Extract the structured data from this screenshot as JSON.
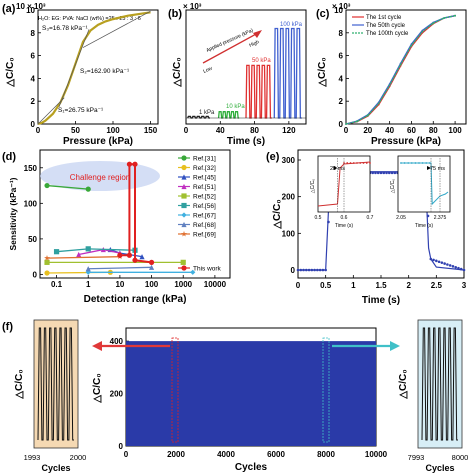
{
  "panels": {
    "a": {
      "letter": "(a)",
      "exp_label": "10 × 10³",
      "formula": "H₂O: EG: PVA: NaCl (wt%) =25 : 25 : 3 : 6",
      "ylabel": "△C/C₀",
      "xlabel": "Pressure (kPa)",
      "xticks": [
        "0",
        "50",
        "100",
        "150"
      ],
      "yticks": [
        "0",
        "2",
        "4",
        "6",
        "8",
        "10"
      ],
      "s3": "S₃=16.78 kPa⁻¹",
      "s2": "S₂=162.90 kPa⁻¹",
      "s1": "S₁=26.75 kPa⁻¹"
    },
    "b": {
      "letter": "(b)",
      "exp_label": "× 10³",
      "ylabel": "△C/C₀",
      "xlabel": "Time (s)",
      "xticks": [
        "0",
        "40",
        "80",
        "120"
      ],
      "arrow_label": "Applied pressure (kPa)",
      "low": "Low",
      "high": "High",
      "l1": "1 kPa",
      "l10": "10 kPa",
      "l50": "50 kPa",
      "l100": "100 kPa"
    },
    "c": {
      "letter": "(c)",
      "exp_label": "× 10³",
      "ylabel": "△C/C₀",
      "xlabel": "Pressure (kPa)",
      "xticks": [
        "0",
        "20",
        "40",
        "60",
        "80",
        "100"
      ],
      "yticks": [
        "0",
        "2",
        "4",
        "6",
        "8",
        "10"
      ],
      "legend": [
        "The 1st cycle",
        "The 50th cycle",
        "The 100th cycle"
      ]
    },
    "d": {
      "letter": "(d)",
      "ylabel": "Sensitivity (kPa⁻¹)",
      "xlabel": "Detection range (kPa)",
      "xticks": [
        "0.1",
        "1",
        "10",
        "100",
        "1000",
        "10000"
      ],
      "yticks": [
        "0",
        "50",
        "100",
        "150"
      ],
      "challenge": "Challenge region",
      "refs": [
        "Ref.[31]",
        "Ref.[32]",
        "Ref.[45]",
        "Ref.[51]",
        "Ref.[52]",
        "Ref.[56]",
        "Ref.[67]",
        "Ref.[68]",
        "Ref.[69]",
        "This work"
      ]
    },
    "e": {
      "letter": "(e)",
      "ylabel": "△C/C₀",
      "xlabel": "Time (s)",
      "xticks": [
        "0",
        "0.5",
        "1",
        "1.5",
        "2",
        "2.5",
        "3"
      ],
      "yticks": [
        "0",
        "100",
        "200",
        "300"
      ],
      "inset1_ann": "25 ms",
      "inset1_xticks": [
        "0.5",
        "0.6",
        "0.7"
      ],
      "inset2_ann": "75 ms",
      "inset2_xticks": [
        "2.05",
        "2.375"
      ],
      "inset_xlabel": "Time (s)",
      "inset_ylabel": "△C/C₀"
    },
    "f": {
      "letter": "(f)",
      "ylabel": "△C/C₀",
      "xlabel": "Cycles",
      "xticks": [
        "0",
        "2000",
        "4000",
        "6000",
        "8000",
        "10000"
      ],
      "yticks": [
        "0",
        "200",
        "400"
      ],
      "left_xticks": [
        "1993",
        "2000"
      ],
      "right_xticks": [
        "7993",
        "8000"
      ],
      "left_xlabel": "Cycles",
      "right_xlabel": "Cycles"
    }
  },
  "colors": {
    "a_curve": "#b8a020",
    "b_curve": "#e03030",
    "b_low": "#222222",
    "b_10": "#2eae3a",
    "b_100": "#4060d0",
    "c_1": "#e03030",
    "c_50": "#4060d0",
    "c_100": "#30b070",
    "e_curve": "#3040b0",
    "e_inset1": "#d03030",
    "e_inset2": "#30a8c8",
    "f_fill": "#2a3aa8",
    "f_left_bg": "#f5d9b3",
    "f_right_bg": "#d7eef6",
    "arrow_red": "#e03838",
    "arrow_teal": "#40c0c8"
  },
  "chart_data": [
    {
      "panel": "a",
      "type": "line",
      "title": "",
      "xlabel": "Pressure (kPa)",
      "ylabel": "△C/C₀",
      "xlim": [
        0,
        160
      ],
      "ylim": [
        0,
        10000
      ],
      "series": [
        {
          "x": [
            0,
            5,
            10,
            20,
            30,
            40,
            50,
            60,
            70,
            80,
            90,
            100,
            120,
            150
          ],
          "y": [
            0,
            100,
            300,
            900,
            1900,
            3400,
            5300,
            7200,
            8200,
            8700,
            9000,
            9200,
            9500,
            9800
          ]
        }
      ]
    },
    {
      "panel": "b",
      "type": "line",
      "title": "",
      "xlabel": "Time (s)",
      "ylabel": "△C/C₀",
      "xlim": [
        0,
        140
      ],
      "series": [
        {
          "name": "1 kPa",
          "pulses": 5,
          "x_range": [
            2,
            28
          ],
          "peak": 150
        },
        {
          "name": "10 kPa",
          "pulses": 5,
          "x_range": [
            38,
            62
          ],
          "peak": 600
        },
        {
          "name": "50 kPa",
          "pulses": 5,
          "x_range": [
            70,
            100
          ],
          "peak": 5000
        },
        {
          "name": "100 kPa",
          "pulses": 5,
          "x_range": [
            103,
            135
          ],
          "peak": 8500
        }
      ]
    },
    {
      "panel": "c",
      "type": "line",
      "title": "",
      "xlabel": "Pressure (kPa)",
      "ylabel": "△C/C₀",
      "xlim": [
        0,
        110
      ],
      "ylim": [
        0,
        10000
      ],
      "series": [
        {
          "name": "The 1st cycle",
          "x": [
            0,
            10,
            20,
            30,
            40,
            50,
            60,
            70,
            80,
            90,
            100
          ],
          "y": [
            0,
            200,
            700,
            1700,
            3300,
            5100,
            6800,
            8000,
            8800,
            9300,
            9500
          ]
        },
        {
          "name": "The 50th cycle",
          "x": [
            0,
            10,
            20,
            30,
            40,
            50,
            60,
            70,
            80,
            90,
            100
          ],
          "y": [
            0,
            250,
            800,
            1900,
            3500,
            5300,
            7000,
            8200,
            8900,
            9300,
            9500
          ]
        },
        {
          "name": "The 100th cycle",
          "x": [
            0,
            10,
            20,
            30,
            40,
            50,
            60,
            70,
            80,
            90,
            100
          ],
          "y": [
            0,
            220,
            750,
            1800,
            3400,
            5200,
            6900,
            8100,
            8850,
            9300,
            9500
          ]
        }
      ]
    },
    {
      "panel": "d",
      "type": "scatter",
      "title": "",
      "xlabel": "Detection range (kPa)",
      "ylabel": "Sensitivity (kPa⁻¹)",
      "xscale": "log",
      "xlim": [
        0.03,
        30000
      ],
      "ylim": [
        -5,
        175
      ],
      "series": [
        {
          "name": "Ref.[31]",
          "color": "#39a839",
          "marker": "circle",
          "x": [
            0.05,
            1
          ],
          "y": [
            125,
            120
          ]
        },
        {
          "name": "Ref.[32]",
          "color": "#e8c020",
          "marker": "circle",
          "x": [
            0.05,
            5
          ],
          "y": [
            2,
            3
          ]
        },
        {
          "name": "Ref.[45]",
          "color": "#3050c0",
          "marker": "triangle",
          "x": [
            5,
            10,
            50
          ],
          "y": [
            35,
            30,
            25
          ]
        },
        {
          "name": "Ref.[51]",
          "color": "#c030c0",
          "marker": "triangle",
          "x": [
            0.5,
            3,
            10
          ],
          "y": [
            28,
            35,
            30
          ]
        },
        {
          "name": "Ref.[52]",
          "color": "#a0c030",
          "marker": "square",
          "x": [
            0.05,
            1000
          ],
          "y": [
            17,
            17
          ]
        },
        {
          "name": "Ref.[56]",
          "color": "#30a0a0",
          "marker": "square",
          "x": [
            0.1,
            1,
            30
          ],
          "y": [
            32,
            36,
            34
          ]
        },
        {
          "name": "Ref.[67]",
          "color": "#40b0e0",
          "marker": "diamond",
          "x": [
            1,
            2000
          ],
          "y": [
            3,
            3
          ]
        },
        {
          "name": "Ref.[68]",
          "color": "#6080c0",
          "marker": "triangle",
          "x": [
            1,
            100
          ],
          "y": [
            8,
            10
          ]
        },
        {
          "name": "Ref.[69]",
          "color": "#e07030",
          "marker": "star",
          "x": [
            0.05,
            10
          ],
          "y": [
            23,
            25
          ]
        },
        {
          "name": "This work",
          "color": "#e02020",
          "marker": "circle",
          "x": [
            10,
            20,
            20,
            30,
            30,
            100
          ],
          "y": [
            27,
            27,
            155,
            155,
            20,
            17
          ]
        }
      ]
    },
    {
      "panel": "e",
      "type": "line",
      "title": "",
      "xlabel": "Time (s)",
      "ylabel": "△C/C₀",
      "xlim": [
        0,
        3
      ],
      "ylim": [
        0,
        300
      ],
      "series": [
        {
          "x": [
            0,
            0.5,
            0.575,
            0.6,
            0.65,
            1,
            1.5,
            2,
            2.3,
            2.36,
            2.4,
            2.5,
            3
          ],
          "y": [
            0,
            0,
            240,
            262,
            265,
            268,
            268,
            268,
            268,
            60,
            30,
            8,
            0
          ]
        }
      ]
    },
    {
      "panel": "f",
      "type": "line",
      "title": "",
      "xlabel": "Cycles",
      "ylabel": "△C/C₀",
      "xlim": [
        0,
        10000
      ],
      "ylim": [
        0,
        450
      ],
      "series": [
        {
          "x_range": [
            0,
            10000
          ],
          "min": 0,
          "max": 400
        }
      ]
    }
  ]
}
